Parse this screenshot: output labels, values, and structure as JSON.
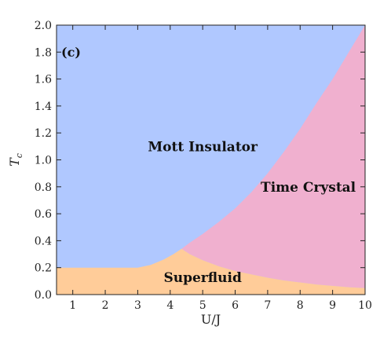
{
  "chart_data": {
    "type": "area",
    "panel_label": "(c)",
    "xlabel": "U/J",
    "ylabel": "T",
    "ylabel_sub": "c",
    "xlim": [
      0.5,
      10
    ],
    "ylim": [
      0,
      2.0
    ],
    "x_ticks": [
      1,
      2,
      3,
      4,
      5,
      6,
      7,
      8,
      9,
      10
    ],
    "y_ticks": [
      0.0,
      0.2,
      0.4,
      0.6,
      0.8,
      1.0,
      1.2,
      1.4,
      1.6,
      1.8,
      2.0
    ],
    "grid": false,
    "regions": [
      {
        "name": "Mott Insulator",
        "color": "#b0c8ff",
        "label_at": [
          5.0,
          1.09
        ]
      },
      {
        "name": "Time Crystal",
        "color": "#f0b0cf",
        "label_at": [
          8.25,
          0.79
        ]
      },
      {
        "name": "Superfluid",
        "color": "#ffcc99",
        "label_at": [
          5.0,
          0.12
        ]
      }
    ],
    "boundaries": {
      "superfluid_upper": {
        "x": [
          0.5,
          3.0,
          3.4,
          3.8,
          4.1,
          4.35,
          4.6,
          5.0,
          5.5,
          6.0,
          6.5,
          7.0,
          7.5,
          8.0,
          8.5,
          9.0,
          9.5,
          10.0
        ],
        "y": [
          0.2,
          0.2,
          0.22,
          0.26,
          0.3,
          0.34,
          0.3,
          0.255,
          0.21,
          0.175,
          0.15,
          0.125,
          0.105,
          0.09,
          0.075,
          0.065,
          0.055,
          0.048
        ]
      },
      "time_crystal_upper": {
        "x": [
          4.35,
          4.6,
          5.0,
          5.5,
          6.0,
          6.5,
          7.0,
          7.5,
          8.0,
          8.5,
          9.0,
          9.5,
          10.0
        ],
        "y": [
          0.34,
          0.385,
          0.45,
          0.54,
          0.64,
          0.76,
          0.9,
          1.06,
          1.23,
          1.42,
          1.6,
          1.8,
          2.0
        ]
      }
    }
  }
}
